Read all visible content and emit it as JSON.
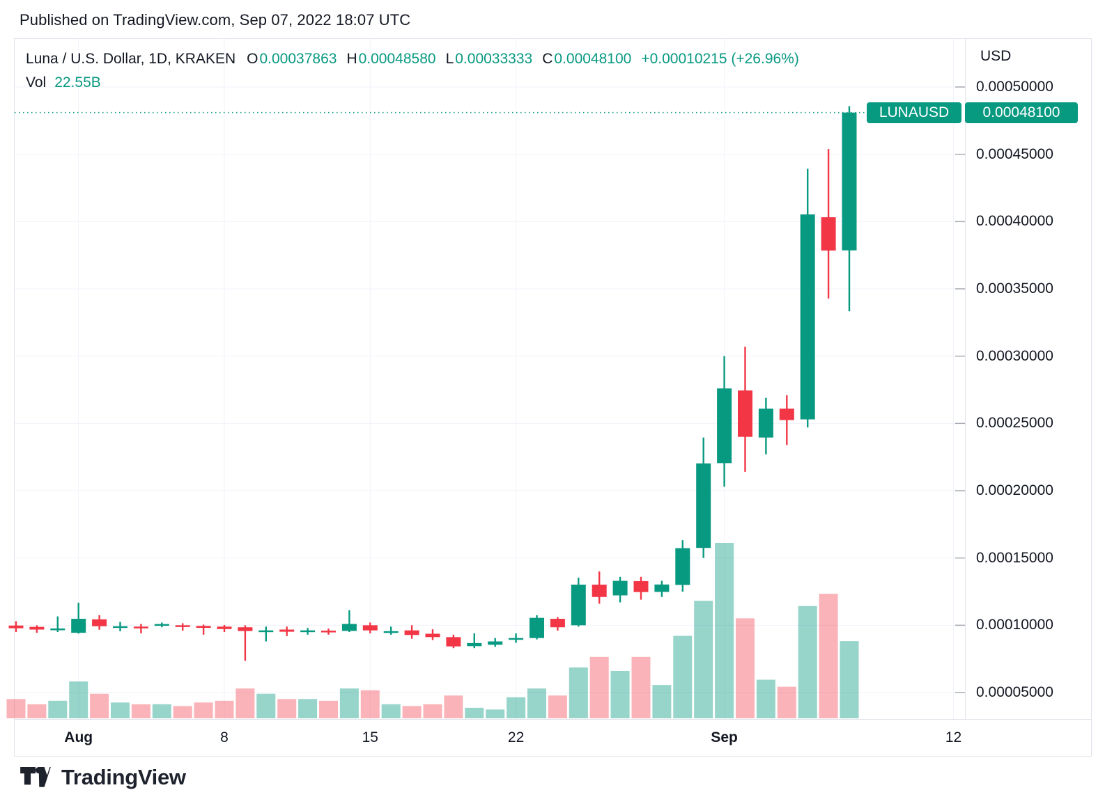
{
  "header": {
    "published_line": "Published on TradingView.com, Sep 07, 2022 18:07 UTC"
  },
  "legend": {
    "symbol_line": "Luna / U.S. Dollar, 1D, KRAKEN",
    "ohlc": [
      {
        "label": "O",
        "value": "0.00037863"
      },
      {
        "label": "H",
        "value": "0.00048580"
      },
      {
        "label": "L",
        "value": "0.00033333"
      },
      {
        "label": "C",
        "value": "0.00048100"
      }
    ],
    "change": "+0.00010215 (+26.96%)",
    "vol_label": "Vol",
    "vol_value": "22.55B"
  },
  "price_axis": {
    "currency_label": "USD",
    "ticks": [
      "0.00050000",
      "0.00045000",
      "0.00040000",
      "0.00035000",
      "0.00030000",
      "0.00025000",
      "0.00020000",
      "0.00015000",
      "0.00010000",
      "0.00005000"
    ],
    "last_price_badge": {
      "symbol": "LUNAUSD",
      "price": "0.00048100"
    }
  },
  "time_axis": {
    "ticks": [
      {
        "label": "Aug",
        "candle_index": 3,
        "bold": true
      },
      {
        "label": "8",
        "candle_index": 10,
        "bold": false
      },
      {
        "label": "15",
        "candle_index": 17,
        "bold": false
      },
      {
        "label": "22",
        "candle_index": 24,
        "bold": false
      },
      {
        "label": "Sep",
        "candle_index": 34,
        "bold": true
      },
      {
        "label": "12",
        "candle_index": 45,
        "bold": false
      }
    ]
  },
  "footer": {
    "brand": "TradingView"
  },
  "colors": {
    "up": "#089981",
    "down": "#f23645",
    "up_volume": "rgba(8,153,129,0.42)",
    "down_volume": "rgba(242,54,69,0.38)",
    "accent_text": "#089981",
    "dark_text": "#131722",
    "grid": "#f0f3fa",
    "border": "#e0e3eb",
    "axis_tick_dash": "#a8abb3",
    "last_price_line": "#089981"
  },
  "chart_data": {
    "type": "candlestick+volume",
    "symbol": "LUNAUSD",
    "pair_name": "Luna / U.S. Dollar",
    "exchange": "KRAKEN",
    "interval": "1D",
    "grid": true,
    "legend_position": "top-left",
    "price_axis_side": "right",
    "ylim": [
      3e-05,
      0.000535
    ],
    "last_price": 0.000481,
    "volume_units": "relative_0_to_1_pixel_estimate",
    "last_bar_volume_label": "22.55B",
    "values_estimated_from_pixels": true,
    "candles": [
      {
        "t": "Jul 29",
        "o": 9.98e-05,
        "h": 0.000103,
        "l": 9.5e-05,
        "c": 9.78e-05,
        "vol_rel": 0.11
      },
      {
        "t": "Jul 30",
        "o": 9.88e-05,
        "h": 0.0001,
        "l": 9.44e-05,
        "c": 9.68e-05,
        "vol_rel": 0.08
      },
      {
        "t": "Jul 31",
        "o": 9.66e-05,
        "h": 0.0001066,
        "l": 9.5e-05,
        "c": 9.76e-05,
        "vol_rel": 0.1
      },
      {
        "t": "Aug 1",
        "o": 9.44e-05,
        "h": 0.0001168,
        "l": 9.38e-05,
        "c": 0.0001048,
        "vol_rel": 0.21
      },
      {
        "t": "Aug 2",
        "o": 0.0001044,
        "h": 0.0001075,
        "l": 9.67e-05,
        "c": 9.93e-05,
        "vol_rel": 0.14
      },
      {
        "t": "Aug 3",
        "o": 9.85e-05,
        "h": 0.0001025,
        "l": 9.55e-05,
        "c": 9.93e-05,
        "vol_rel": 0.09
      },
      {
        "t": "Aug 4",
        "o": 9.9e-05,
        "h": 0.000101,
        "l": 9.4e-05,
        "c": 9.78e-05,
        "vol_rel": 0.08
      },
      {
        "t": "Aug 5",
        "o": 9.99e-05,
        "h": 0.000102,
        "l": 9.85e-05,
        "c": 0.0001009,
        "vol_rel": 0.08
      },
      {
        "t": "Aug 6",
        "o": 0.0001,
        "h": 0.0001015,
        "l": 9.6e-05,
        "c": 9.9e-05,
        "vol_rel": 0.07
      },
      {
        "t": "Aug 7",
        "o": 9.95e-05,
        "h": 0.0001005,
        "l": 9.3e-05,
        "c": 9.81e-05,
        "vol_rel": 0.09
      },
      {
        "t": "Aug 8",
        "o": 9.9e-05,
        "h": 0.0001002,
        "l": 9.5e-05,
        "c": 9.72e-05,
        "vol_rel": 0.1
      },
      {
        "t": "Aug 9",
        "o": 9.85e-05,
        "h": 0.0001,
        "l": 7.36e-05,
        "c": 9.57e-05,
        "vol_rel": 0.17
      },
      {
        "t": "Aug 10",
        "o": 9.5e-05,
        "h": 9.9e-05,
        "l": 8.8e-05,
        "c": 9.62e-05,
        "vol_rel": 0.14
      },
      {
        "t": "Aug 11",
        "o": 9.68e-05,
        "h": 9.9e-05,
        "l": 9.2e-05,
        "c": 9.52e-05,
        "vol_rel": 0.11
      },
      {
        "t": "Aug 12",
        "o": 9.5e-05,
        "h": 9.8e-05,
        "l": 9.3e-05,
        "c": 9.62e-05,
        "vol_rel": 0.11
      },
      {
        "t": "Aug 13",
        "o": 9.6e-05,
        "h": 9.75e-05,
        "l": 9.3e-05,
        "c": 9.48e-05,
        "vol_rel": 0.1
      },
      {
        "t": "Aug 14",
        "o": 9.58e-05,
        "h": 0.0001112,
        "l": 9.5e-05,
        "c": 0.000101,
        "vol_rel": 0.17
      },
      {
        "t": "Aug 15",
        "o": 0.0001,
        "h": 0.000102,
        "l": 9.4e-05,
        "c": 9.62e-05,
        "vol_rel": 0.16
      },
      {
        "t": "Aug 16",
        "o": 9.48e-05,
        "h": 9.9e-05,
        "l": 9.3e-05,
        "c": 9.56e-05,
        "vol_rel": 0.08
      },
      {
        "t": "Aug 17",
        "o": 9.62e-05,
        "h": 0.0001,
        "l": 9e-05,
        "c": 9.28e-05,
        "vol_rel": 0.07
      },
      {
        "t": "Aug 18",
        "o": 9.37e-05,
        "h": 9.7e-05,
        "l": 8.9e-05,
        "c": 9.12e-05,
        "vol_rel": 0.08
      },
      {
        "t": "Aug 19",
        "o": 9.12e-05,
        "h": 9.3e-05,
        "l": 8.3e-05,
        "c": 8.43e-05,
        "vol_rel": 0.13
      },
      {
        "t": "Aug 20",
        "o": 8.45e-05,
        "h": 9.4e-05,
        "l": 8.3e-05,
        "c": 8.68e-05,
        "vol_rel": 0.06
      },
      {
        "t": "Aug 21",
        "o": 8.55e-05,
        "h": 9.05e-05,
        "l": 8.4e-05,
        "c": 8.8e-05,
        "vol_rel": 0.05
      },
      {
        "t": "Aug 22",
        "o": 8.95e-05,
        "h": 9.4e-05,
        "l": 8.7e-05,
        "c": 9.05e-05,
        "vol_rel": 0.12
      },
      {
        "t": "Aug 23",
        "o": 9.05e-05,
        "h": 0.0001075,
        "l": 8.95e-05,
        "c": 0.0001055,
        "vol_rel": 0.17
      },
      {
        "t": "Aug 24",
        "o": 0.0001048,
        "h": 0.000106,
        "l": 9.6e-05,
        "c": 9.85e-05,
        "vol_rel": 0.13
      },
      {
        "t": "Aug 25",
        "o": 0.0001,
        "h": 0.0001354,
        "l": 9.9e-05,
        "c": 0.0001302,
        "vol_rel": 0.29
      },
      {
        "t": "Aug 26",
        "o": 0.0001302,
        "h": 0.00014,
        "l": 0.000116,
        "c": 0.000121,
        "vol_rel": 0.35
      },
      {
        "t": "Aug 27",
        "o": 0.0001222,
        "h": 0.000136,
        "l": 0.000117,
        "c": 0.000133,
        "vol_rel": 0.27
      },
      {
        "t": "Aug 28",
        "o": 0.0001328,
        "h": 0.000136,
        "l": 0.000119,
        "c": 0.0001247,
        "vol_rel": 0.35
      },
      {
        "t": "Aug 29",
        "o": 0.0001248,
        "h": 0.000133,
        "l": 0.000121,
        "c": 0.0001303,
        "vol_rel": 0.19
      },
      {
        "t": "Aug 30",
        "o": 0.00013,
        "h": 0.0001632,
        "l": 0.000125,
        "c": 0.0001573,
        "vol_rel": 0.47
      },
      {
        "t": "Aug 31",
        "o": 0.0001575,
        "h": 0.0002395,
        "l": 0.00015,
        "c": 0.0002203,
        "vol_rel": 0.67
      },
      {
        "t": "Sep 1",
        "o": 0.0002205,
        "h": 0.0003,
        "l": 0.000203,
        "c": 0.000276,
        "vol_rel": 1.0
      },
      {
        "t": "Sep 2",
        "o": 0.0002745,
        "h": 0.000307,
        "l": 0.000214,
        "c": 0.00024,
        "vol_rel": 0.57
      },
      {
        "t": "Sep 3",
        "o": 0.0002395,
        "h": 0.000269,
        "l": 0.000227,
        "c": 0.000261,
        "vol_rel": 0.22
      },
      {
        "t": "Sep 4",
        "o": 0.000261,
        "h": 0.000271,
        "l": 0.000234,
        "c": 0.0002525,
        "vol_rel": 0.18
      },
      {
        "t": "Sep 5",
        "o": 0.000253,
        "h": 0.0004392,
        "l": 0.000247,
        "c": 0.0004053,
        "vol_rel": 0.64
      },
      {
        "t": "Sep 6",
        "o": 0.0004032,
        "h": 0.0004539,
        "l": 0.0003428,
        "c": 0.0003785,
        "vol_rel": 0.71
      },
      {
        "t": "Sep 7",
        "o": 0.00037863,
        "h": 0.0004858,
        "l": 0.00033333,
        "c": 0.000481,
        "vol_rel": 0.44
      }
    ]
  }
}
